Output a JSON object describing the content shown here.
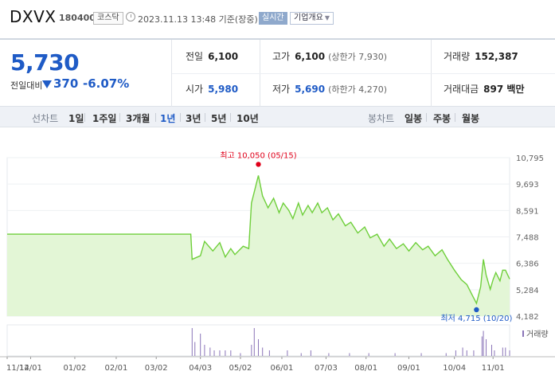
{
  "header": {
    "ticker": "DXVX",
    "code": "180400",
    "market": "코스닥",
    "datetime": "2023.11.13 13:48 기준(장중)",
    "realtime_label": "실시간",
    "company_button": "기업개요"
  },
  "price": {
    "current": "5,730",
    "diff_label": "전일대비",
    "diff": "370",
    "rate": "-6.07%",
    "direction": "down"
  },
  "stats": {
    "prev_label": "전일",
    "prev": "6,100",
    "high_label": "고가",
    "high": "6,100",
    "upper_limit": "(상한가 7,930)",
    "volume_label": "거래량",
    "volume": "152,387",
    "open_label": "시가",
    "open": "5,980",
    "low_label": "저가",
    "low": "5,690",
    "lower_limit": "(하한가 4,270)",
    "amount_label": "거래대금",
    "amount": "897 백만"
  },
  "periods": {
    "line_label": "선차트",
    "line_items": [
      "1일",
      "1주일",
      "3개월",
      "1년",
      "3년",
      "5년",
      "10년"
    ],
    "active": "1년",
    "candle_label": "봉차트",
    "candle_items": [
      "일봉",
      "주봉",
      "월봉"
    ]
  },
  "chart_data": {
    "type": "area",
    "ylim": [
      4182,
      10795
    ],
    "yticks": [
      "10,795",
      "9,693",
      "8,591",
      "7,488",
      "6,386",
      "5,284",
      "4,182"
    ],
    "xticks": [
      "11/14",
      "12/01",
      "01/02",
      "02/01",
      "03/02",
      "04/03",
      "05/02",
      "06/01",
      "07/03",
      "08/01",
      "09/01",
      "10/04",
      "11/01"
    ],
    "high_label": "최고 10,050 (05/15)",
    "low_label": "최저 4,715 (10/20)",
    "volume_label": "거래량",
    "line_color": "#6fcf3b",
    "fill_color": "#e3f6d6",
    "high_color": "#e0001a",
    "low_color": "#1f5bc6",
    "series": [
      {
        "date": "11/14",
        "value": 7600
      },
      {
        "date": "03/27",
        "value": 7600
      },
      {
        "date": "03/28",
        "value": 6550
      },
      {
        "date": "04/03",
        "value": 6700
      },
      {
        "date": "04/06",
        "value": 7300
      },
      {
        "date": "04/12",
        "value": 6900
      },
      {
        "date": "04/17",
        "value": 7250
      },
      {
        "date": "04/21",
        "value": 6650
      },
      {
        "date": "04/25",
        "value": 7000
      },
      {
        "date": "04/28",
        "value": 6750
      },
      {
        "date": "05/04",
        "value": 7100
      },
      {
        "date": "05/08",
        "value": 7000
      },
      {
        "date": "05/10",
        "value": 8900
      },
      {
        "date": "05/15",
        "value": 10050
      },
      {
        "date": "05/18",
        "value": 9200
      },
      {
        "date": "05/22",
        "value": 8700
      },
      {
        "date": "05/26",
        "value": 9100
      },
      {
        "date": "05/30",
        "value": 8500
      },
      {
        "date": "06/02",
        "value": 8900
      },
      {
        "date": "06/06",
        "value": 8600
      },
      {
        "date": "06/09",
        "value": 8250
      },
      {
        "date": "06/13",
        "value": 8900
      },
      {
        "date": "06/16",
        "value": 8400
      },
      {
        "date": "06/20",
        "value": 8800
      },
      {
        "date": "06/23",
        "value": 8500
      },
      {
        "date": "06/27",
        "value": 8900
      },
      {
        "date": "06/30",
        "value": 8500
      },
      {
        "date": "07/04",
        "value": 8700
      },
      {
        "date": "07/08",
        "value": 8200
      },
      {
        "date": "07/12",
        "value": 8450
      },
      {
        "date": "07/17",
        "value": 7950
      },
      {
        "date": "07/21",
        "value": 8100
      },
      {
        "date": "07/26",
        "value": 7650
      },
      {
        "date": "07/31",
        "value": 7900
      },
      {
        "date": "08/04",
        "value": 7450
      },
      {
        "date": "08/09",
        "value": 7600
      },
      {
        "date": "08/14",
        "value": 7100
      },
      {
        "date": "08/18",
        "value": 7400
      },
      {
        "date": "08/23",
        "value": 7000
      },
      {
        "date": "08/28",
        "value": 7200
      },
      {
        "date": "09/01",
        "value": 6900
      },
      {
        "date": "09/06",
        "value": 7250
      },
      {
        "date": "09/11",
        "value": 6950
      },
      {
        "date": "09/15",
        "value": 7100
      },
      {
        "date": "09/20",
        "value": 6700
      },
      {
        "date": "09/25",
        "value": 6950
      },
      {
        "date": "09/29",
        "value": 6550
      },
      {
        "date": "10/04",
        "value": 6100
      },
      {
        "date": "10/09",
        "value": 5700
      },
      {
        "date": "10/13",
        "value": 5500
      },
      {
        "date": "10/17",
        "value": 5050
      },
      {
        "date": "10/20",
        "value": 4715
      },
      {
        "date": "10/23",
        "value": 5400
      },
      {
        "date": "10/25",
        "value": 6550
      },
      {
        "date": "10/27",
        "value": 5900
      },
      {
        "date": "10/30",
        "value": 5300
      },
      {
        "date": "11/01",
        "value": 5700
      },
      {
        "date": "11/03",
        "value": 6000
      },
      {
        "date": "11/06",
        "value": 5650
      },
      {
        "date": "11/08",
        "value": 6100
      },
      {
        "date": "11/10",
        "value": 6100
      },
      {
        "date": "11/13",
        "value": 5730
      }
    ],
    "volume_bars": [
      {
        "date": "03/28",
        "value": 10
      },
      {
        "date": "03/30",
        "value": 5
      },
      {
        "date": "04/03",
        "value": 8
      },
      {
        "date": "04/06",
        "value": 4
      },
      {
        "date": "04/10",
        "value": 3
      },
      {
        "date": "04/13",
        "value": 2
      },
      {
        "date": "04/17",
        "value": 2
      },
      {
        "date": "04/21",
        "value": 2
      },
      {
        "date": "04/25",
        "value": 2
      },
      {
        "date": "05/02",
        "value": 1
      },
      {
        "date": "05/10",
        "value": 4
      },
      {
        "date": "05/12",
        "value": 10
      },
      {
        "date": "05/15",
        "value": 6
      },
      {
        "date": "05/18",
        "value": 3
      },
      {
        "date": "05/23",
        "value": 2
      },
      {
        "date": "06/05",
        "value": 2
      },
      {
        "date": "06/15",
        "value": 1
      },
      {
        "date": "06/22",
        "value": 2
      },
      {
        "date": "07/05",
        "value": 1
      },
      {
        "date": "07/20",
        "value": 1
      },
      {
        "date": "08/03",
        "value": 1
      },
      {
        "date": "08/22",
        "value": 1
      },
      {
        "date": "09/10",
        "value": 1
      },
      {
        "date": "09/28",
        "value": 1
      },
      {
        "date": "10/05",
        "value": 2
      },
      {
        "date": "10/10",
        "value": 3
      },
      {
        "date": "10/13",
        "value": 2
      },
      {
        "date": "10/18",
        "value": 2
      },
      {
        "date": "10/24",
        "value": 7
      },
      {
        "date": "10/25",
        "value": 9
      },
      {
        "date": "10/27",
        "value": 6
      },
      {
        "date": "10/31",
        "value": 4
      },
      {
        "date": "11/02",
        "value": 2
      },
      {
        "date": "11/08",
        "value": 3
      },
      {
        "date": "11/10",
        "value": 3
      },
      {
        "date": "11/13",
        "value": 2
      }
    ]
  }
}
